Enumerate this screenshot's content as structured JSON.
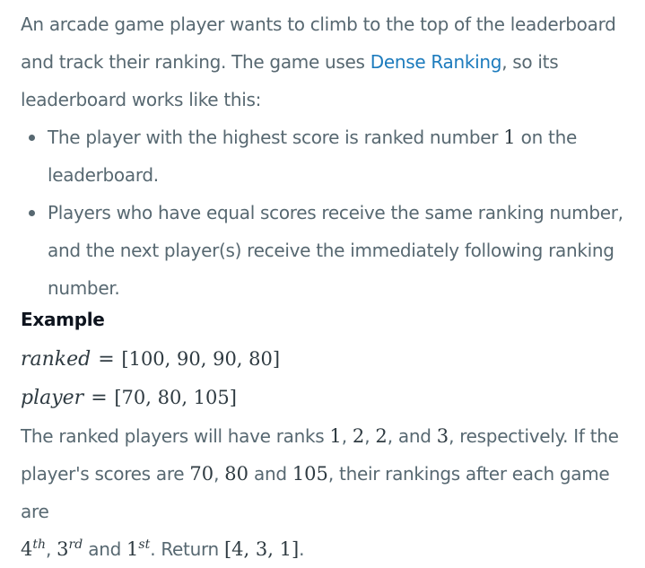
{
  "intro": {
    "line1": "An arcade game player wants to climb to the top of the leaderboard",
    "line2_pre": "and track their ranking. The game uses ",
    "link_text": "Dense Ranking",
    "line2_post": ", so its",
    "line3": "leaderboard works like this:"
  },
  "bullets": [
    {
      "pre": "The player with the highest score is ranked number ",
      "math": "1",
      "post": " on the",
      "cont": "leaderboard."
    },
    {
      "line1": "Players who have equal scores receive the same ranking number,",
      "line2": "and the next player(s) receive the immediately following ranking",
      "line3": "number."
    }
  ],
  "example": {
    "heading": "Example",
    "ranked_var": "ranked",
    "ranked_value": "[100, 90, 90, 80]",
    "player_var": "player",
    "player_value": "[70, 80, 105]",
    "equals": "="
  },
  "result": {
    "t1": "The ranked players will have ranks ",
    "r1": "1",
    "c1": ", ",
    "r2": "2",
    "c2": ", ",
    "r3": "2",
    "t2": ", and ",
    "r4": "3",
    "t3": ", respectively. If the",
    "t4": "player's scores are ",
    "s1": "70",
    "c3": ", ",
    "s2": "80",
    "t5": " and ",
    "s3": "105",
    "t6": ", their rankings after each game are",
    "o1": "4",
    "o1_sup": "th",
    "c4": ", ",
    "o2": "3",
    "o2_sup": "rd",
    "t7": " and ",
    "o3": "1",
    "o3_sup": "st",
    "t8": ". Return ",
    "ret": "[4, 3, 1]",
    "t9": "."
  }
}
